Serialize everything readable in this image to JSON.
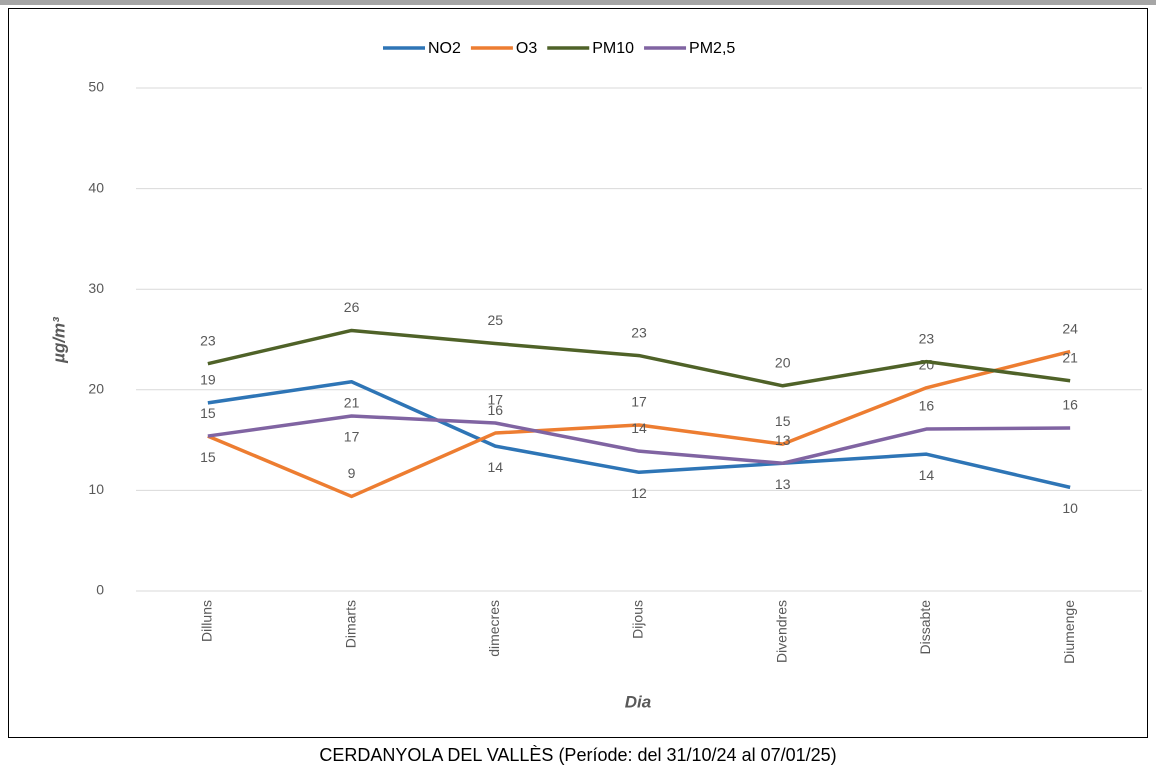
{
  "chart_data": {
    "type": "line",
    "title": "CERDANYOLA DEL VALLÈS (Període: del 31/10/24 al 07/01/25)",
    "x_label": "Dia",
    "y_label": "µg/m³",
    "categories": [
      "Dilluns",
      "Dimarts",
      "dimecres",
      "Dijous",
      "Divendres",
      "Dissabte",
      "Diumenge"
    ],
    "series": [
      {
        "name": "NO2",
        "color": "#2e75b6",
        "values": [
          18.7,
          20.8,
          14.4,
          11.8,
          12.7,
          13.6,
          10.3
        ],
        "value_labels": [
          "19",
          "21",
          "14",
          "12",
          "13",
          "14",
          "10"
        ]
      },
      {
        "name": "O3",
        "color": "#ed7d31",
        "values": [
          15.4,
          9.4,
          15.7,
          16.5,
          14.6,
          20.2,
          23.8
        ],
        "value_labels": [
          "15",
          "9",
          "16",
          "17",
          "15",
          "20",
          "24"
        ]
      },
      {
        "name": "PM10",
        "color": "#4f6228",
        "values": [
          22.6,
          25.9,
          24.6,
          23.4,
          20.4,
          22.8,
          20.9
        ],
        "value_labels": [
          "23",
          "26",
          "25",
          "23",
          "20",
          "23",
          "21"
        ]
      },
      {
        "name": "PM2,5",
        "color": "#8064a2",
        "values": [
          15.4,
          17.4,
          16.7,
          13.9,
          12.7,
          16.1,
          16.2
        ],
        "value_labels": [
          "15",
          "17",
          "17",
          "14",
          "13",
          "16",
          "16"
        ]
      }
    ],
    "ylim": [
      0,
      50
    ],
    "yticks": [
      0,
      10,
      20,
      30,
      40,
      50
    ],
    "grid": true,
    "legend": "top"
  }
}
